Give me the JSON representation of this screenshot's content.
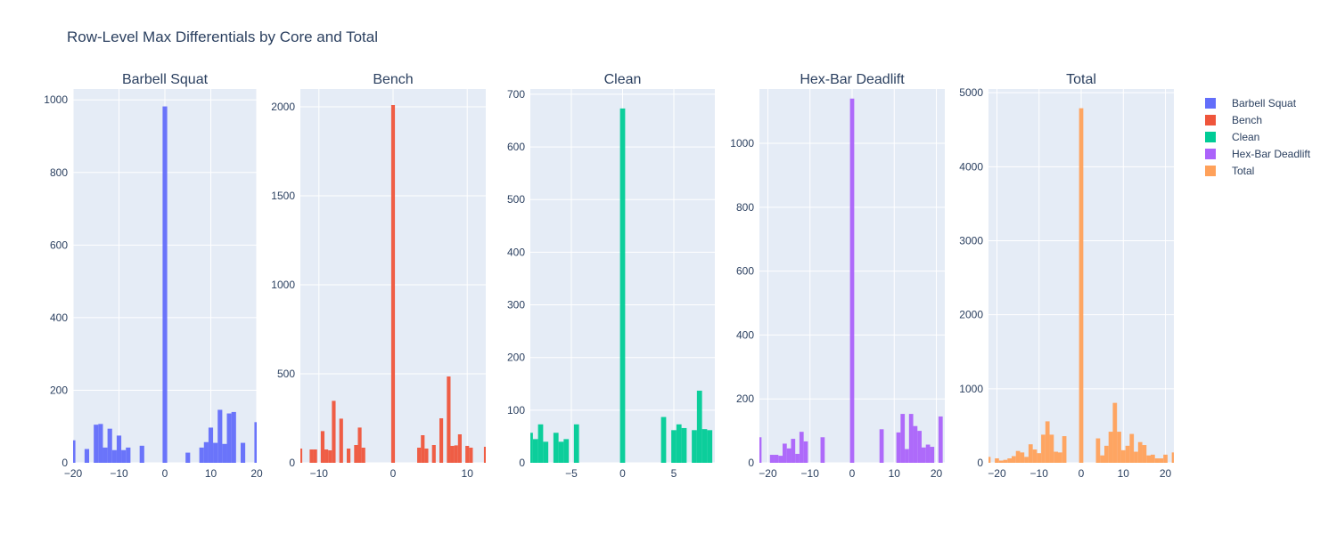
{
  "chart_data": {
    "type": "histogram",
    "title": "Row-Level Max Differentials by Core and Total",
    "grid": true,
    "legend_position": "right",
    "legend": [
      "Barbell Squat",
      "Bench",
      "Clean",
      "Hex-Bar Deadlift",
      "Total"
    ],
    "panels": [
      {
        "title": "Barbell Squat",
        "color": "#636efa",
        "xlim": [
          -20,
          20
        ],
        "ylim": [
          0,
          1030
        ],
        "xticks": [
          -20,
          -10,
          0,
          10,
          20
        ],
        "xtick_labels": [
          "−20",
          "−10",
          "0",
          "10",
          "20"
        ],
        "yticks": [
          0,
          200,
          400,
          600,
          800,
          1000
        ],
        "ytick_labels": [
          "0",
          "200",
          "400",
          "600",
          "800",
          "1000"
        ],
        "bin_width": 1,
        "bins": [
          [
            -20,
            62
          ],
          [
            -17,
            38
          ],
          [
            -15,
            105
          ],
          [
            -14,
            107
          ],
          [
            -13,
            42
          ],
          [
            -12,
            94
          ],
          [
            -11,
            35
          ],
          [
            -10,
            75
          ],
          [
            -9,
            35
          ],
          [
            -8,
            42
          ],
          [
            -5,
            47
          ],
          [
            0,
            982
          ],
          [
            5,
            28
          ],
          [
            8,
            42
          ],
          [
            9,
            57
          ],
          [
            10,
            97
          ],
          [
            11,
            55
          ],
          [
            12,
            146
          ],
          [
            13,
            52
          ],
          [
            14,
            136
          ],
          [
            15,
            140
          ],
          [
            17,
            55
          ],
          [
            20,
            112
          ]
        ]
      },
      {
        "title": "Bench",
        "color": "#ef553b",
        "xlim": [
          -12.5,
          12.5
        ],
        "ylim": [
          0,
          2100
        ],
        "xticks": [
          -10,
          0,
          10
        ],
        "xtick_labels": [
          "−10",
          "0",
          "10"
        ],
        "yticks": [
          0,
          500,
          1000,
          1500,
          2000
        ],
        "ytick_labels": [
          "0",
          "500",
          "1000",
          "1500",
          "2000"
        ],
        "bin_width": 0.5,
        "bins": [
          [
            -12.5,
            80
          ],
          [
            -11,
            75
          ],
          [
            -10.5,
            75
          ],
          [
            -9.5,
            178
          ],
          [
            -9,
            75
          ],
          [
            -8.5,
            70
          ],
          [
            -8,
            348
          ],
          [
            -7,
            248
          ],
          [
            -6,
            80
          ],
          [
            -5,
            100
          ],
          [
            -4.5,
            198
          ],
          [
            -4,
            85
          ],
          [
            0,
            2010
          ],
          [
            3.5,
            85
          ],
          [
            4,
            155
          ],
          [
            4.5,
            80
          ],
          [
            5.5,
            100
          ],
          [
            6.5,
            250
          ],
          [
            7.5,
            485
          ],
          [
            8,
            95
          ],
          [
            8.5,
            98
          ],
          [
            9,
            160
          ],
          [
            10,
            95
          ],
          [
            10.5,
            85
          ],
          [
            12.5,
            90
          ]
        ]
      },
      {
        "title": "Clean",
        "color": "#00cc96",
        "xlim": [
          -9,
          9
        ],
        "ylim": [
          0,
          710
        ],
        "xticks": [
          -5,
          0,
          5
        ],
        "xtick_labels": [
          "−5",
          "0",
          "5"
        ],
        "yticks": [
          0,
          100,
          200,
          300,
          400,
          500,
          600,
          700
        ],
        "ytick_labels": [
          "0",
          "100",
          "200",
          "300",
          "400",
          "500",
          "600",
          "700"
        ],
        "bin_width": 0.5,
        "bins": [
          [
            -9,
            57
          ],
          [
            -8.5,
            45
          ],
          [
            -8,
            73
          ],
          [
            -7.5,
            40
          ],
          [
            -6.5,
            57
          ],
          [
            -6,
            40
          ],
          [
            -5.5,
            45
          ],
          [
            -4.5,
            73
          ],
          [
            0,
            673
          ],
          [
            4,
            87
          ],
          [
            5,
            62
          ],
          [
            5.5,
            73
          ],
          [
            6,
            66
          ],
          [
            7,
            62
          ],
          [
            7.5,
            137
          ],
          [
            8,
            64
          ],
          [
            8.5,
            62
          ]
        ]
      },
      {
        "title": "Hex-Bar Deadlift",
        "color": "#ab63fa",
        "xlim": [
          -22,
          22
        ],
        "ylim": [
          0,
          1170
        ],
        "xticks": [
          -20,
          -10,
          0,
          10,
          20
        ],
        "xtick_labels": [
          "−20",
          "−10",
          "0",
          "10",
          "20"
        ],
        "yticks": [
          0,
          200,
          400,
          600,
          800,
          1000
        ],
        "ytick_labels": [
          "0",
          "200",
          "400",
          "600",
          "800",
          "1000"
        ],
        "bin_width": 1,
        "bins": [
          [
            -22,
            80
          ],
          [
            -19,
            25
          ],
          [
            -18,
            25
          ],
          [
            -17,
            22
          ],
          [
            -16,
            60
          ],
          [
            -15,
            45
          ],
          [
            -14,
            75
          ],
          [
            -13,
            28
          ],
          [
            -12,
            97
          ],
          [
            -11,
            67
          ],
          [
            -7,
            80
          ],
          [
            0,
            1140
          ],
          [
            7,
            105
          ],
          [
            11,
            95
          ],
          [
            12,
            153
          ],
          [
            13,
            43
          ],
          [
            14,
            153
          ],
          [
            15,
            115
          ],
          [
            16,
            100
          ],
          [
            17,
            48
          ],
          [
            18,
            57
          ],
          [
            19,
            50
          ],
          [
            21,
            145
          ]
        ]
      },
      {
        "title": "Total",
        "color": "#ffa15a",
        "xlim": [
          -22,
          22
        ],
        "ylim": [
          0,
          5050
        ],
        "xticks": [
          -20,
          -10,
          0,
          10,
          20
        ],
        "xtick_labels": [
          "−20",
          "−10",
          "0",
          "10",
          "20"
        ],
        "yticks": [
          0,
          1000,
          2000,
          3000,
          4000,
          5000
        ],
        "ytick_labels": [
          "0",
          "1000",
          "2000",
          "3000",
          "4000",
          "5000"
        ],
        "bin_width": 1,
        "bins": [
          [
            -22,
            80
          ],
          [
            -20,
            60
          ],
          [
            -19,
            30
          ],
          [
            -18,
            40
          ],
          [
            -17,
            60
          ],
          [
            -16,
            90
          ],
          [
            -15,
            160
          ],
          [
            -14,
            140
          ],
          [
            -13,
            80
          ],
          [
            -12,
            250
          ],
          [
            -11,
            180
          ],
          [
            -10,
            130
          ],
          [
            -9,
            380
          ],
          [
            -8,
            560
          ],
          [
            -7,
            380
          ],
          [
            -6,
            150
          ],
          [
            -5,
            140
          ],
          [
            -4,
            360
          ],
          [
            0,
            4790
          ],
          [
            4,
            330
          ],
          [
            5,
            100
          ],
          [
            6,
            230
          ],
          [
            7,
            420
          ],
          [
            8,
            810
          ],
          [
            9,
            420
          ],
          [
            10,
            170
          ],
          [
            11,
            230
          ],
          [
            12,
            390
          ],
          [
            13,
            150
          ],
          [
            14,
            280
          ],
          [
            15,
            240
          ],
          [
            16,
            100
          ],
          [
            17,
            110
          ],
          [
            18,
            60
          ],
          [
            19,
            60
          ],
          [
            20,
            110
          ],
          [
            22,
            140
          ]
        ]
      }
    ]
  }
}
